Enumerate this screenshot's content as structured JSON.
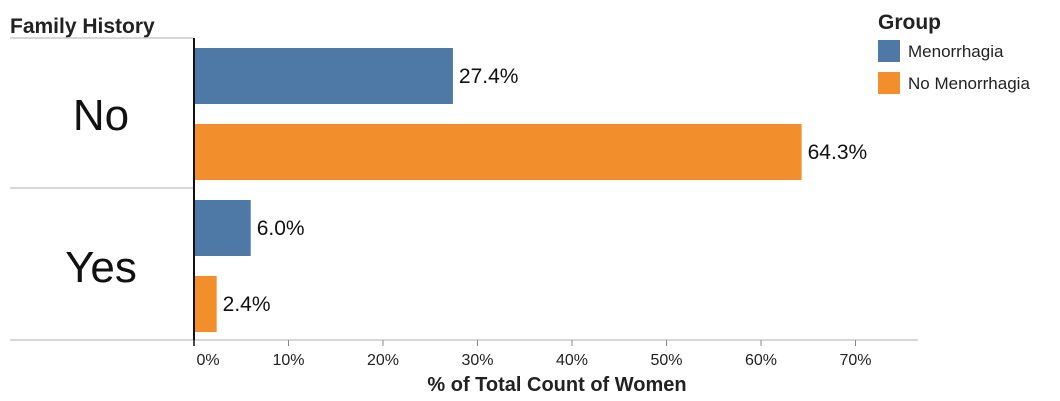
{
  "chart_data": {
    "type": "bar",
    "orientation": "horizontal",
    "row_header": "Family History",
    "categories": [
      "No",
      "Yes"
    ],
    "series": [
      {
        "name": "Menorrhagia",
        "color": "#4e79a7",
        "values": [
          27.4,
          6.0
        ]
      },
      {
        "name": "No Menorrhagia",
        "color": "#f28e2b",
        "values": [
          64.3,
          2.4
        ]
      }
    ],
    "value_labels": [
      [
        "27.4%",
        "6.0%"
      ],
      [
        "64.3%",
        "2.4%"
      ]
    ],
    "xlabel": "% of Total Count of Women",
    "xlim": [
      0,
      75
    ],
    "xticks": [
      0,
      10,
      20,
      30,
      40,
      50,
      60,
      70
    ],
    "xtick_labels": [
      "0%",
      "10%",
      "20%",
      "30%",
      "40%",
      "50%",
      "60%",
      "70%"
    ],
    "legend": {
      "title": "Group",
      "position": "top-right"
    },
    "grid": false
  }
}
